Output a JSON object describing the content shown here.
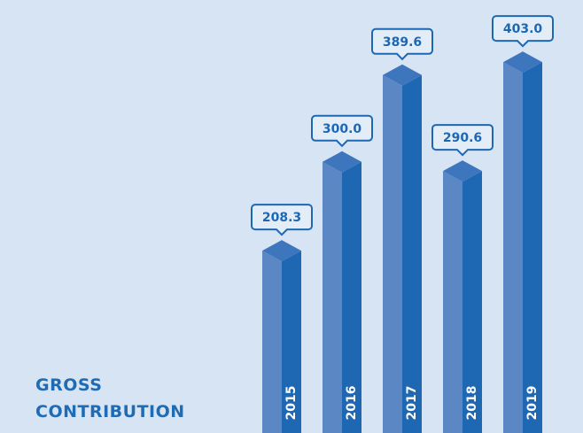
{
  "chart_data": {
    "type": "bar3d",
    "title": "GROSS CONTRIBUTION",
    "categories": [
      "2015",
      "2016",
      "2017",
      "2018",
      "2019"
    ],
    "values": [
      208.3,
      300.0,
      389.6,
      290.6,
      403.0
    ],
    "value_labels": [
      "208.3",
      "300.0",
      "389.6",
      "290.6",
      "403.0"
    ],
    "color": "#1e67b3"
  }
}
